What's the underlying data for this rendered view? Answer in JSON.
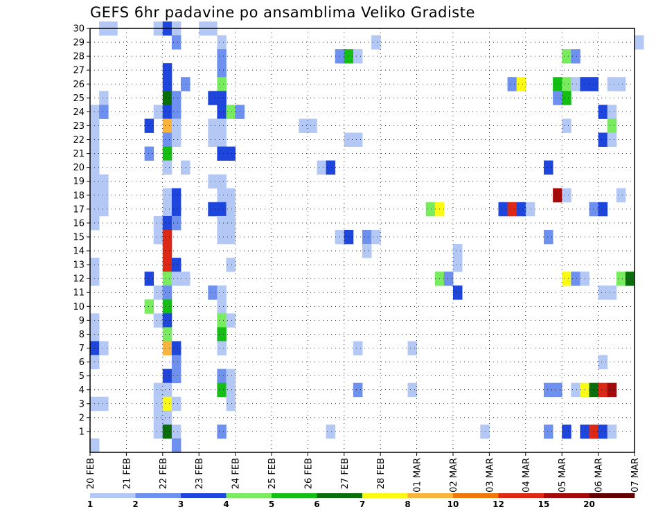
{
  "chart_data": {
    "type": "heatmap",
    "title": "GEFS 6hr padavine po ansamblima Veliko Gradiste",
    "xlabel": "",
    "ylabel": "",
    "x_ticks": [
      "20 FEB",
      "21 FEB",
      "22 FEB",
      "23 FEB",
      "24 FEB",
      "25 FEB",
      "26 FEB",
      "27 FEB",
      "28 FEB",
      "01 MAR",
      "02 MAR",
      "03 MAR",
      "04 MAR",
      "05 MAR",
      "06 MAR",
      "07 MAR"
    ],
    "y_ticks": [
      1,
      2,
      3,
      4,
      5,
      6,
      7,
      8,
      9,
      10,
      11,
      12,
      13,
      14,
      15,
      16,
      17,
      18,
      19,
      20,
      21,
      22,
      23,
      24,
      25,
      26,
      27,
      28,
      29,
      30
    ],
    "ylim": [
      0,
      30
    ],
    "xlim_days": [
      0,
      15
    ],
    "step_hours": 6,
    "grid": true,
    "colorbar": {
      "labels": [
        "1",
        "2",
        "3",
        "4",
        "5",
        "6",
        "7",
        "8",
        "10",
        "12",
        "15",
        "20"
      ],
      "colors": [
        "#b4c8f5",
        "#6e91f0",
        "#1e46dc",
        "#78eb5f",
        "#14be14",
        "#0a6e0a",
        "#fafa14",
        "#fab43c",
        "#f0780a",
        "#dc2814",
        "#a50a0a",
        "#640000"
      ]
    },
    "legend_position": "bottom",
    "cells": [
      [
        30,
        0.25,
        0
      ],
      [
        30,
        0.5,
        0
      ],
      [
        30,
        1.75,
        0
      ],
      [
        30,
        2,
        2
      ],
      [
        30,
        2.25,
        0
      ],
      [
        30,
        3.0,
        0
      ],
      [
        30,
        3.25,
        0
      ],
      [
        29,
        2.25,
        1
      ],
      [
        29,
        3.5,
        0
      ],
      [
        29,
        7.75,
        0
      ],
      [
        29,
        15,
        0
      ],
      [
        28,
        6.75,
        1
      ],
      [
        28,
        7.0,
        4
      ],
      [
        28,
        7.25,
        0
      ],
      [
        28,
        13.0,
        3
      ],
      [
        28,
        13.25,
        1
      ],
      [
        28,
        3.5,
        1
      ],
      [
        27,
        2,
        2
      ],
      [
        27,
        3.5,
        1
      ],
      [
        26,
        2,
        2
      ],
      [
        26,
        2.5,
        1
      ],
      [
        26,
        3.5,
        3
      ],
      [
        26,
        11.5,
        1
      ],
      [
        26,
        11.75,
        6
      ],
      [
        26,
        12.75,
        4
      ],
      [
        26,
        13.0,
        3
      ],
      [
        26,
        13.25,
        0
      ],
      [
        26,
        13.5,
        2
      ],
      [
        26,
        13.75,
        2
      ],
      [
        26,
        14.25,
        0
      ],
      [
        26,
        14.5,
        0
      ],
      [
        25,
        0.25,
        0
      ],
      [
        25,
        2,
        5
      ],
      [
        25,
        2.25,
        1
      ],
      [
        25,
        3.25,
        2
      ],
      [
        25,
        3.5,
        2
      ],
      [
        25,
        12.75,
        1
      ],
      [
        25,
        13.0,
        4
      ],
      [
        24,
        0,
        0
      ],
      [
        24,
        0.25,
        1
      ],
      [
        24,
        1.75,
        0
      ],
      [
        24,
        2,
        2
      ],
      [
        24,
        2.25,
        1
      ],
      [
        24,
        3.5,
        2
      ],
      [
        24,
        3.75,
        3
      ],
      [
        24,
        4.0,
        1
      ],
      [
        24,
        14.0,
        2
      ],
      [
        24,
        14.25,
        0
      ],
      [
        23,
        0,
        0
      ],
      [
        23,
        1.5,
        2
      ],
      [
        23,
        2,
        7
      ],
      [
        23,
        2.25,
        0
      ],
      [
        23,
        3.25,
        0
      ],
      [
        23,
        3.5,
        0
      ],
      [
        23,
        5.75,
        0
      ],
      [
        23,
        6.0,
        0
      ],
      [
        23,
        13.0,
        0
      ],
      [
        23,
        14.25,
        3
      ],
      [
        22,
        0,
        0
      ],
      [
        22,
        2,
        1
      ],
      [
        22,
        2.25,
        0
      ],
      [
        22,
        3.25,
        0
      ],
      [
        22,
        3.5,
        0
      ],
      [
        22,
        7.0,
        0
      ],
      [
        22,
        7.25,
        0
      ],
      [
        22,
        14.0,
        2
      ],
      [
        22,
        14.25,
        0
      ],
      [
        21,
        0,
        0
      ],
      [
        21,
        1.5,
        1
      ],
      [
        21,
        2,
        4
      ],
      [
        21,
        3.5,
        2
      ],
      [
        21,
        3.75,
        2
      ],
      [
        20,
        0,
        0
      ],
      [
        20,
        2,
        0
      ],
      [
        20,
        2.5,
        0
      ],
      [
        20,
        6.25,
        0
      ],
      [
        20,
        6.5,
        2
      ],
      [
        20,
        12.5,
        2
      ],
      [
        19,
        0,
        0
      ],
      [
        19,
        0.25,
        0
      ],
      [
        19,
        3.25,
        0
      ],
      [
        19,
        3.5,
        0
      ],
      [
        18,
        0,
        0
      ],
      [
        18,
        0.25,
        0
      ],
      [
        18,
        2,
        0
      ],
      [
        18,
        2.25,
        2
      ],
      [
        18,
        3.5,
        0
      ],
      [
        18,
        3.75,
        0
      ],
      [
        18,
        12.75,
        10
      ],
      [
        18,
        13.0,
        0
      ],
      [
        18,
        14.5,
        0
      ],
      [
        17,
        0,
        0
      ],
      [
        17,
        0.25,
        0
      ],
      [
        17,
        2,
        0
      ],
      [
        17,
        2.25,
        2
      ],
      [
        17,
        3.25,
        2
      ],
      [
        17,
        3.5,
        2
      ],
      [
        17,
        3.75,
        0
      ],
      [
        17,
        9.25,
        3
      ],
      [
        17,
        9.5,
        6
      ],
      [
        17,
        11.25,
        2
      ],
      [
        17,
        11.5,
        9
      ],
      [
        17,
        11.75,
        2
      ],
      [
        17,
        12.0,
        0
      ],
      [
        17,
        13.75,
        1
      ],
      [
        17,
        14.0,
        2
      ],
      [
        16,
        0,
        0
      ],
      [
        16,
        1.75,
        0
      ],
      [
        16,
        2,
        2
      ],
      [
        16,
        2.25,
        1
      ],
      [
        16,
        3.5,
        0
      ],
      [
        16,
        3.75,
        0
      ],
      [
        15,
        1.75,
        0
      ],
      [
        15,
        2,
        9
      ],
      [
        15,
        3.5,
        0
      ],
      [
        15,
        3.75,
        0
      ],
      [
        15,
        6.75,
        0
      ],
      [
        15,
        7.0,
        2
      ],
      [
        15,
        7.5,
        1
      ],
      [
        15,
        7.75,
        0
      ],
      [
        15,
        12.5,
        1
      ],
      [
        14,
        2,
        9
      ],
      [
        14,
        7.5,
        0
      ],
      [
        14,
        10.0,
        0
      ],
      [
        13,
        0,
        0
      ],
      [
        13,
        2,
        9
      ],
      [
        13,
        2.25,
        2
      ],
      [
        13,
        3.75,
        0
      ],
      [
        13,
        10.0,
        0
      ],
      [
        12,
        0,
        0
      ],
      [
        12,
        1.5,
        2
      ],
      [
        12,
        2,
        3
      ],
      [
        12,
        2.25,
        0
      ],
      [
        12,
        2.5,
        0
      ],
      [
        12,
        9.5,
        3
      ],
      [
        12,
        9.75,
        1
      ],
      [
        12,
        13.0,
        6
      ],
      [
        12,
        13.25,
        1
      ],
      [
        12,
        13.5,
        0
      ],
      [
        12,
        14.5,
        3
      ],
      [
        12,
        14.75,
        5
      ],
      [
        11,
        1.75,
        0
      ],
      [
        11,
        2,
        1
      ],
      [
        11,
        3.25,
        1
      ],
      [
        11,
        3.5,
        0
      ],
      [
        11,
        10.0,
        2
      ],
      [
        11,
        14.0,
        0
      ],
      [
        11,
        14.25,
        0
      ],
      [
        10,
        1.5,
        3
      ],
      [
        10,
        2,
        4
      ],
      [
        10,
        3.5,
        0
      ],
      [
        9,
        0,
        0
      ],
      [
        9,
        1.75,
        0
      ],
      [
        9,
        2,
        2
      ],
      [
        9,
        3.5,
        3
      ],
      [
        9,
        3.75,
        0
      ],
      [
        8,
        0,
        0
      ],
      [
        8,
        2,
        3
      ],
      [
        8,
        3.5,
        4
      ],
      [
        7,
        0,
        2
      ],
      [
        7,
        0.25,
        0
      ],
      [
        7,
        2,
        7
      ],
      [
        7,
        2.25,
        2
      ],
      [
        7,
        3.5,
        0
      ],
      [
        7,
        7.25,
        0
      ],
      [
        7,
        8.75,
        0
      ],
      [
        6,
        0,
        0
      ],
      [
        6,
        2.25,
        1
      ],
      [
        6,
        14.0,
        0
      ],
      [
        5,
        2,
        2
      ],
      [
        5,
        2.25,
        1
      ],
      [
        5,
        3.5,
        1
      ],
      [
        5,
        3.75,
        0
      ],
      [
        4,
        1.75,
        0
      ],
      [
        4,
        2,
        0
      ],
      [
        4,
        3.5,
        4
      ],
      [
        4,
        3.75,
        0
      ],
      [
        4,
        7.25,
        1
      ],
      [
        4,
        8.75,
        0
      ],
      [
        4,
        12.5,
        1
      ],
      [
        4,
        12.75,
        1
      ],
      [
        4,
        13.25,
        0
      ],
      [
        4,
        13.5,
        6
      ],
      [
        4,
        13.75,
        5
      ],
      [
        4,
        14.0,
        9
      ],
      [
        4,
        14.25,
        10
      ],
      [
        3,
        0,
        0
      ],
      [
        3,
        0.25,
        0
      ],
      [
        3,
        1.75,
        0
      ],
      [
        3,
        2,
        6
      ],
      [
        3,
        2.25,
        0
      ],
      [
        3,
        3.75,
        0
      ],
      [
        2,
        1.75,
        0
      ],
      [
        2,
        2,
        0
      ],
      [
        1,
        1.75,
        0
      ],
      [
        1,
        2,
        5
      ],
      [
        1,
        2.25,
        0
      ],
      [
        1,
        3.5,
        1
      ],
      [
        1,
        6.5,
        0
      ],
      [
        1,
        10.75,
        0
      ],
      [
        1,
        12.5,
        1
      ],
      [
        1,
        13.0,
        2
      ],
      [
        1,
        13.5,
        2
      ],
      [
        1,
        13.75,
        9
      ],
      [
        1,
        14.0,
        2
      ],
      [
        1,
        14.25,
        0
      ],
      [
        0,
        0,
        0
      ],
      [
        0,
        2.25,
        1
      ]
    ]
  }
}
